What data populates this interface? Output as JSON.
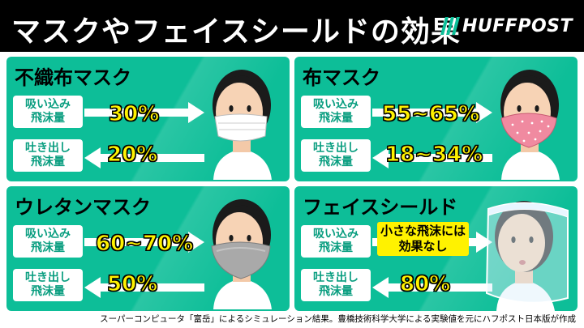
{
  "header": {
    "title": "マスクやフェイスシールドの効果",
    "brand": "HUFFPOST"
  },
  "panels": [
    {
      "title": "不織布マスク",
      "inhale_label": [
        "吸い込み",
        "飛沫量"
      ],
      "exhale_label": [
        "吐き出し",
        "飛沫量"
      ],
      "inhale_value": "30%",
      "exhale_value": "20%",
      "mask": "white-surgical-mask"
    },
    {
      "title": "布マスク",
      "inhale_label": [
        "吸い込み",
        "飛沫量"
      ],
      "exhale_label": [
        "吐き出し",
        "飛沫量"
      ],
      "inhale_value": "55~65%",
      "exhale_value": "18~34%",
      "mask": "pink-cloth-mask"
    },
    {
      "title": "ウレタンマスク",
      "inhale_label": [
        "吸い込み",
        "飛沫量"
      ],
      "exhale_label": [
        "吐き出し",
        "飛沫量"
      ],
      "inhale_value": "60~70%",
      "exhale_value": "50%",
      "mask": "gray-urethane-mask"
    },
    {
      "title": "フェイスシールド",
      "inhale_label": [
        "吸い込み",
        "飛沫量"
      ],
      "exhale_label": [
        "吐き出し",
        "飛沫量"
      ],
      "inhale_note": [
        "小さな飛沫には",
        "効果なし"
      ],
      "exhale_value": "80%",
      "mask": "face-shield"
    }
  ],
  "footer": "スーパーコンピュータ「富岳」によるシミュレーション結果。豊橋技術科学大学による実験値を元にハフポスト日本版が作成",
  "colors": {
    "header_bg": "#000000",
    "panel_bg": "#0dbe98",
    "label_text": "#0a9e80",
    "value_yellow": "#fff200"
  }
}
